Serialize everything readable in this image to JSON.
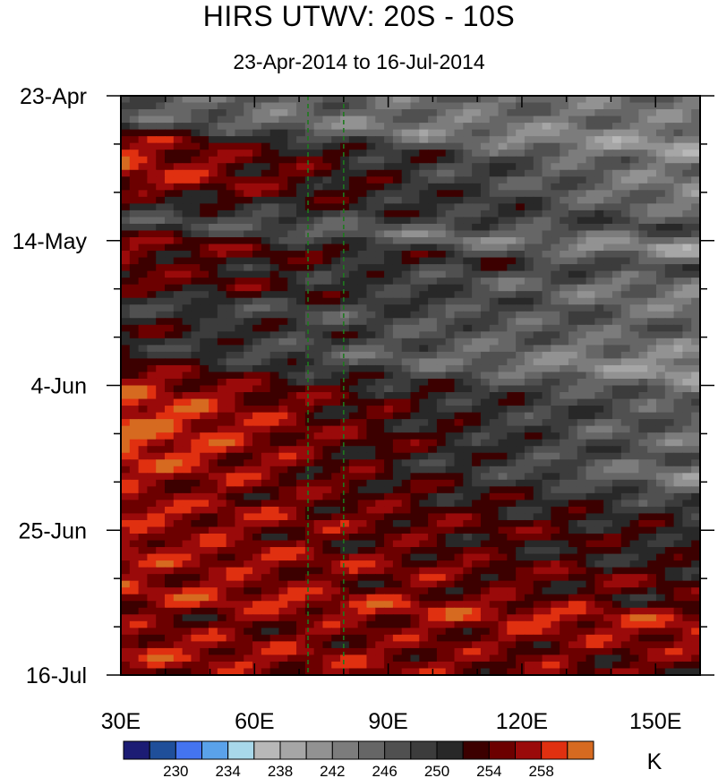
{
  "chart_data": {
    "type": "heatmap",
    "title": "HIRS UTWV: 20S - 10S",
    "subtitle": "23-Apr-2014 to 16-Jul-2014",
    "xlabel": "",
    "ylabel": "",
    "x_range": [
      30,
      160
    ],
    "y_range": [
      "23-Apr-2014",
      "16-Jul-2014"
    ],
    "x_ticks": [
      {
        "value": 30,
        "label": "30E"
      },
      {
        "value": 60,
        "label": "60E"
      },
      {
        "value": 90,
        "label": "90E"
      },
      {
        "value": 120,
        "label": "120E"
      },
      {
        "value": 150,
        "label": "150E"
      }
    ],
    "y_ticks": [
      {
        "value": "23-Apr-2014",
        "label": "23-Apr"
      },
      {
        "value": "14-May-2014",
        "label": "14-May"
      },
      {
        "value": "4-Jun-2014",
        "label": "4-Jun"
      },
      {
        "value": "25-Jun-2014",
        "label": "25-Jun"
      },
      {
        "value": "16-Jul-2014",
        "label": "16-Jul"
      }
    ],
    "reference_lines_lon": [
      72,
      80
    ],
    "colorbar": {
      "unit": "K",
      "levels": [
        228,
        230,
        232,
        234,
        236,
        238,
        240,
        242,
        244,
        246,
        248,
        250,
        252,
        254,
        256,
        258,
        260
      ],
      "labeled": [
        "230",
        "234",
        "238",
        "242",
        "246",
        "250",
        "254",
        "258"
      ],
      "colors": [
        "#1c1c74",
        "#1f4f9a",
        "#4474f0",
        "#5aa2ea",
        "#a8d8ea",
        "#b8b8b8",
        "#a6a6a6",
        "#929292",
        "#7c7c7c",
        "#666666",
        "#505050",
        "#3c3c3c",
        "#282828",
        "#3c0000",
        "#6c0000",
        "#9a0a0a",
        "#e03010",
        "#d66a20"
      ]
    },
    "bands": [
      {
        "date": "23-Apr-2014",
        "west": 246,
        "east": 244
      },
      {
        "date": "26-Apr-2014",
        "west": 246,
        "east": 240
      },
      {
        "date": "29-Apr-2014",
        "west": 256,
        "east": 244
      },
      {
        "date": "2-May-2014",
        "west": 258,
        "east": 242
      },
      {
        "date": "5-May-2014",
        "west": 258,
        "east": 244
      },
      {
        "date": "8-May-2014",
        "west": 252,
        "east": 248
      },
      {
        "date": "11-May-2014",
        "west": 248,
        "east": 240
      },
      {
        "date": "14-May-2014",
        "west": 256,
        "east": 248
      },
      {
        "date": "17-May-2014",
        "west": 254,
        "east": 242
      },
      {
        "date": "20-May-2014",
        "west": 256,
        "east": 244
      },
      {
        "date": "23-May-2014",
        "west": 248,
        "east": 246
      },
      {
        "date": "26-May-2014",
        "west": 254,
        "east": 242
      },
      {
        "date": "29-May-2014",
        "west": 250,
        "east": 240
      },
      {
        "date": "1-Jun-2014",
        "west": 254,
        "east": 246
      },
      {
        "date": "4-Jun-2014",
        "west": 258,
        "east": 246
      },
      {
        "date": "7-Jun-2014",
        "west": 260,
        "east": 244
      },
      {
        "date": "10-Jun-2014",
        "west": 260,
        "east": 246
      },
      {
        "date": "13-Jun-2014",
        "west": 260,
        "east": 242
      },
      {
        "date": "16-Jun-2014",
        "west": 258,
        "east": 248
      },
      {
        "date": "19-Jun-2014",
        "west": 256,
        "east": 250
      },
      {
        "date": "22-Jun-2014",
        "west": 258,
        "east": 252
      },
      {
        "date": "25-Jun-2014",
        "west": 256,
        "east": 250
      },
      {
        "date": "28-Jun-2014",
        "west": 258,
        "east": 254
      },
      {
        "date": "1-Jul-2014",
        "west": 256,
        "east": 252
      },
      {
        "date": "4-Jul-2014",
        "west": 258,
        "east": 258
      },
      {
        "date": "7-Jul-2014",
        "west": 254,
        "east": 256
      },
      {
        "date": "10-Jul-2014",
        "west": 256,
        "east": 254
      },
      {
        "date": "13-Jul-2014",
        "west": 258,
        "east": 254
      },
      {
        "date": "16-Jul-2014",
        "west": 254,
        "east": 252
      }
    ]
  }
}
